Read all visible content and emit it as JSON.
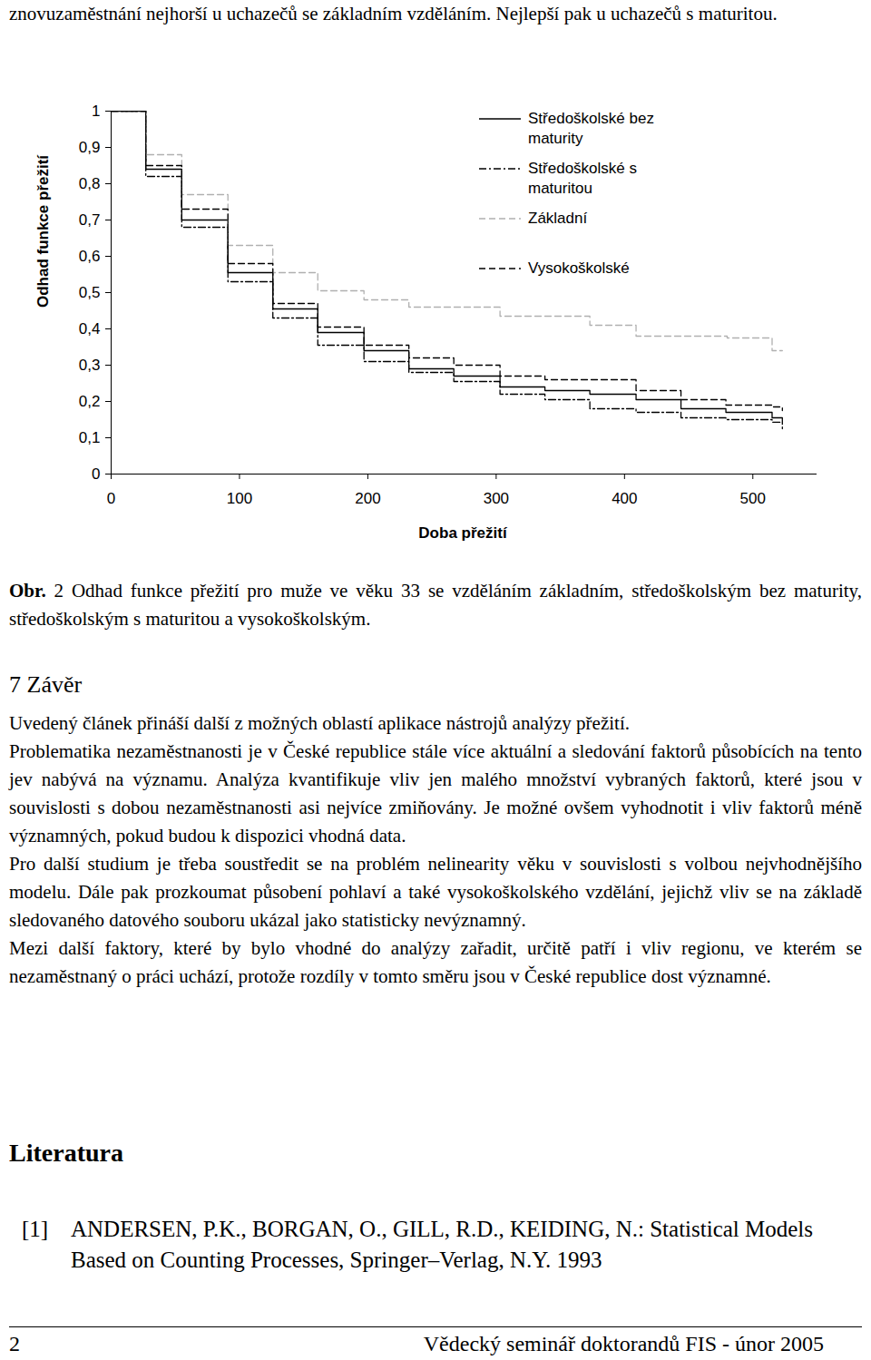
{
  "header_text": "znovuzaměstnání nejhorší u uchazečů se základním vzděláním. Nejlepší pak u uchazečů s maturitou.",
  "chart_data": {
    "type": "line",
    "xlabel": "Doba přežití",
    "ylabel": "Odhad funkce přežití",
    "xlim": [
      0,
      550
    ],
    "ylim": [
      0,
      1
    ],
    "xticks": [
      0,
      100,
      200,
      300,
      400,
      500
    ],
    "yticks": [
      0,
      {
        "value": 0.1,
        "label": "0,1"
      },
      {
        "value": 0.2,
        "label": "0,2"
      },
      {
        "value": 0.3,
        "label": "0,3"
      },
      {
        "value": 0.4,
        "label": "0,4"
      },
      {
        "value": 0.5,
        "label": "0,5"
      },
      {
        "value": 0.6,
        "label": "0,6"
      },
      {
        "value": 0.7,
        "label": "0,7"
      },
      {
        "value": 0.8,
        "label": "0,8"
      },
      {
        "value": 0.9,
        "label": "0,9"
      },
      1
    ],
    "legend": "top-right",
    "series": [
      {
        "name": "Středoškolské bez maturity",
        "color": "#000000",
        "line_style": "solid",
        "x": [
          0,
          27,
          55,
          91,
          126,
          161,
          197,
          232,
          267,
          303,
          338,
          373,
          409,
          444,
          479,
          515,
          523
        ],
        "values": [
          1,
          0.84,
          0.7,
          0.555,
          0.455,
          0.39,
          0.34,
          0.29,
          0.27,
          0.24,
          0.23,
          0.22,
          0.205,
          0.18,
          0.17,
          0.155,
          0.143
        ]
      },
      {
        "name": "Středoškolské s maturitou",
        "color": "#000000",
        "line_style": "dashdot",
        "x": [
          0,
          27,
          55,
          91,
          126,
          161,
          197,
          232,
          267,
          303,
          338,
          373,
          409,
          444,
          479,
          515,
          523
        ],
        "values": [
          1,
          0.82,
          0.68,
          0.53,
          0.43,
          0.355,
          0.31,
          0.28,
          0.255,
          0.22,
          0.205,
          0.18,
          0.17,
          0.155,
          0.15,
          0.143,
          0.125
        ]
      },
      {
        "name": "Základní",
        "color": "#b0b0b0",
        "line_style": "dashed",
        "x": [
          0,
          27,
          55,
          91,
          126,
          161,
          197,
          232,
          303,
          373,
          409,
          480,
          515,
          523
        ],
        "values": [
          1,
          0.88,
          0.77,
          0.63,
          0.555,
          0.505,
          0.48,
          0.46,
          0.435,
          0.41,
          0.38,
          0.375,
          0.34,
          0.34
        ]
      },
      {
        "name": "Vysokoškolské",
        "color": "#000000",
        "line_style": "dashed",
        "x": [
          0,
          27,
          55,
          91,
          126,
          161,
          197,
          232,
          267,
          303,
          338,
          409,
          444,
          479,
          515,
          523
        ],
        "values": [
          1,
          0.85,
          0.73,
          0.58,
          0.47,
          0.405,
          0.355,
          0.32,
          0.3,
          0.27,
          0.26,
          0.23,
          0.205,
          0.19,
          0.185,
          0.175
        ]
      }
    ]
  },
  "caption": {
    "label": "Obr.",
    "text": "2 Odhad funkce přežití pro muže ve věku 33 se vzděláním základním, středoškolským bez maturity, středoškolským s maturitou a vysokoškolským."
  },
  "section_heading": "7 Závěr",
  "paragraphs": [
    "Uvedený článek přináší další z možných oblastí aplikace nástrojů analýzy přežití.",
    "Problematika nezaměstnanosti je v České republice stále více aktuální a sledování faktorů působících na tento jev nabývá na významu. Analýza kvantifikuje vliv jen malého množství vybraných faktorů, které jsou v souvislosti s dobou nezaměstnanosti asi nejvíce zmiňovány. Je možné ovšem vyhodnotit i vliv faktorů méně významných, pokud budou k dispozici vhodná data.",
    "Pro další studium je třeba soustředit se na problém nelinearity věku v souvislosti s volbou nejvhodnějšího modelu. Dále pak prozkoumat působení pohlaví a také vysokoškolského vzdělání, jejichž vliv se na základě sledovaného datového souboru ukázal jako statisticky nevýznamný.",
    "Mezi další faktory, které by bylo vhodné do analýzy zařadit, určitě patří i vliv regionu, ve kterém se nezaměstnaný o práci uchází, protože rozdíly v tomto směru jsou v České republice dost významné."
  ],
  "references_heading": "Literatura",
  "references": [
    {
      "label": "[1]",
      "text": "ANDERSEN, P.K., BORGAN, O., GILL, R.D., KEIDING, N.: Statistical Models Based on Counting Processes, Springer–Verlag, N.Y. 1993"
    }
  ],
  "footer": {
    "page": "2",
    "text": "Vědecký seminář doktorandů FIS - únor 2005"
  }
}
